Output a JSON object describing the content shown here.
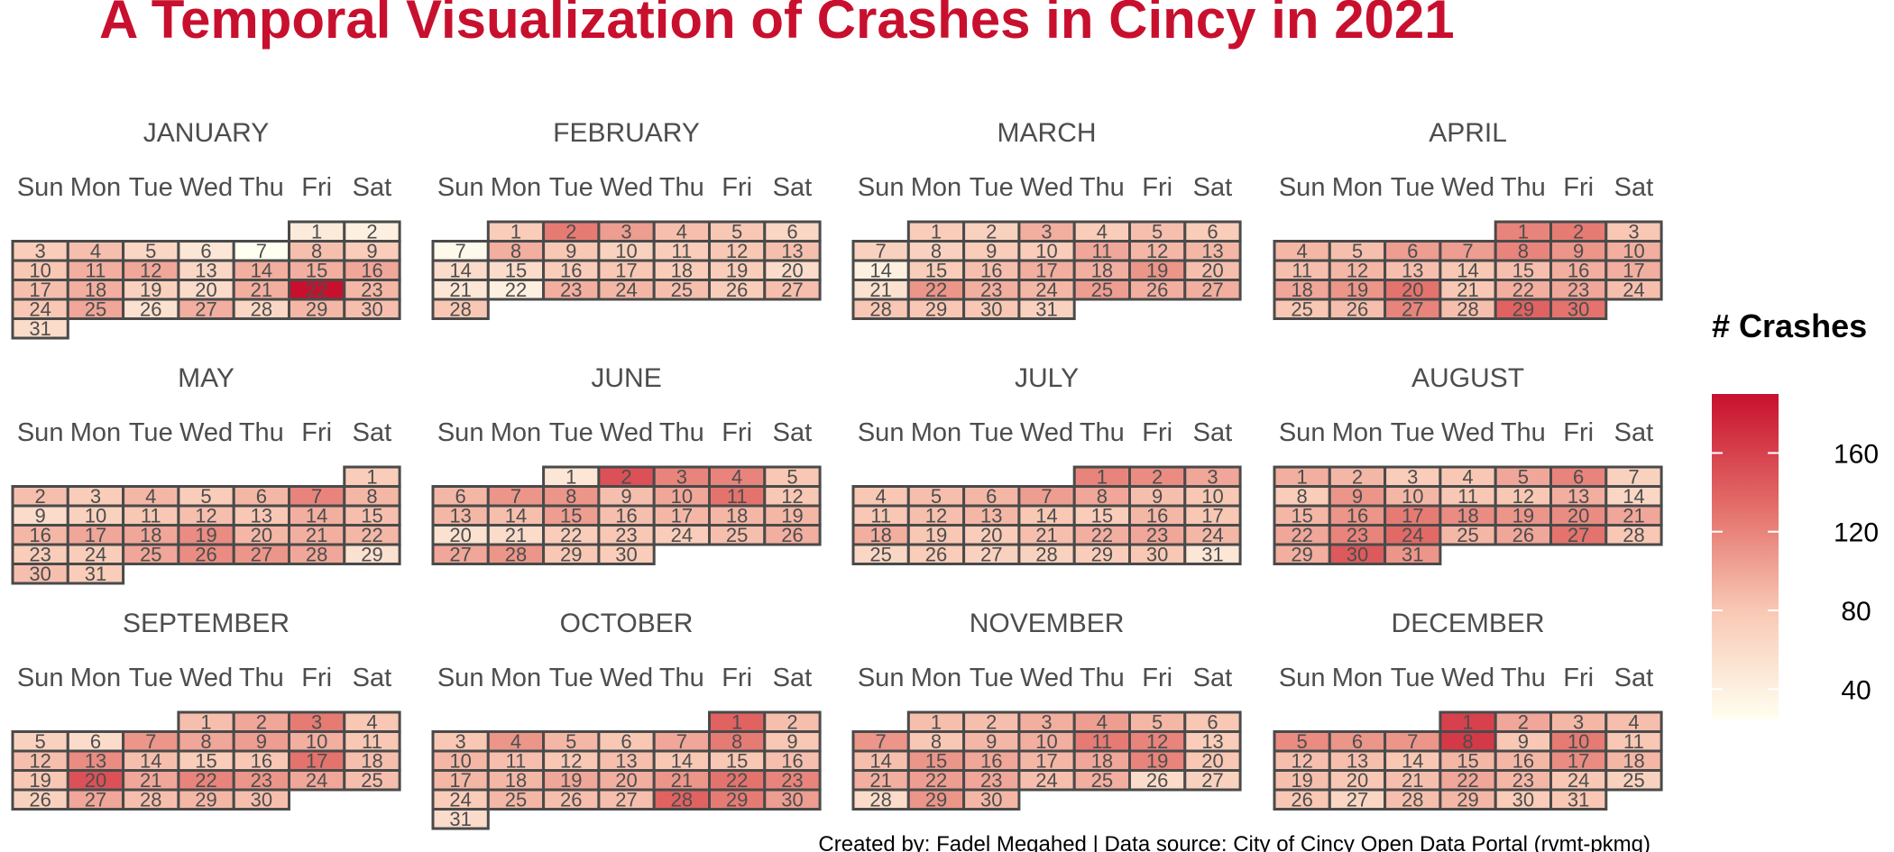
{
  "chart_data": {
    "type": "heatmap",
    "title": "A Temporal Visualization of Crashes in Cincy in 2021",
    "caption": "Created by: Fadel Megahed | Data source: City of Cincy Open Data Portal (rvmt-pkmq)",
    "year": 2021,
    "weekdays": [
      "Sun",
      "Mon",
      "Tue",
      "Wed",
      "Thu",
      "Fri",
      "Sat"
    ],
    "legend": {
      "title": "# Crashes",
      "ticks": [
        40,
        80,
        120,
        160
      ],
      "range": [
        25,
        190
      ],
      "colors": [
        "#fffff0",
        "#f8c8b4",
        "#e26a66",
        "#c8102e"
      ]
    },
    "months": [
      {
        "name": "JANUARY",
        "first_weekday": 5,
        "values": [
          45,
          40,
          75,
          85,
          65,
          50,
          25,
          85,
          75,
          80,
          95,
          100,
          65,
          95,
          95,
          100,
          85,
          95,
          70,
          60,
          95,
          190,
          90,
          80,
          100,
          55,
          95,
          65,
          90,
          85,
          60
        ]
      },
      {
        "name": "FEBRUARY",
        "first_weekday": 1,
        "values": [
          75,
          125,
          105,
          85,
          80,
          65,
          30,
          95,
          80,
          70,
          75,
          80,
          85,
          60,
          60,
          75,
          80,
          75,
          75,
          60,
          50,
          40,
          95,
          90,
          85,
          75,
          85,
          80
        ]
      },
      {
        "name": "MARCH",
        "first_weekday": 1,
        "values": [
          75,
          70,
          95,
          75,
          85,
          75,
          70,
          70,
          75,
          75,
          100,
          90,
          90,
          40,
          75,
          85,
          95,
          95,
          110,
          85,
          55,
          110,
          95,
          90,
          105,
          95,
          95,
          80,
          80,
          80,
          70
        ]
      },
      {
        "name": "APRIL",
        "first_weekday": 4,
        "values": [
          120,
          125,
          80,
          90,
          85,
          105,
          105,
          120,
          110,
          95,
          85,
          90,
          85,
          80,
          85,
          95,
          95,
          100,
          110,
          130,
          80,
          95,
          100,
          85,
          80,
          85,
          120,
          85,
          140,
          130
        ]
      },
      {
        "name": "MAY",
        "first_weekday": 6,
        "values": [
          75,
          85,
          75,
          90,
          75,
          90,
          120,
          90,
          60,
          70,
          80,
          85,
          80,
          95,
          85,
          90,
          100,
          100,
          115,
          90,
          95,
          90,
          75,
          75,
          100,
          115,
          110,
          100,
          55,
          85,
          75
        ]
      },
      {
        "name": "JUNE",
        "first_weekday": 2,
        "values": [
          50,
          150,
          120,
          120,
          80,
          90,
          110,
          110,
          85,
          100,
          130,
          80,
          90,
          85,
          105,
          85,
          90,
          90,
          90,
          55,
          60,
          75,
          80,
          75,
          85,
          95,
          100,
          110,
          80,
          75
        ]
      },
      {
        "name": "JULY",
        "first_weekday": 4,
        "values": [
          120,
          115,
          100,
          80,
          85,
          90,
          105,
          100,
          85,
          80,
          80,
          85,
          90,
          80,
          75,
          90,
          80,
          95,
          80,
          75,
          85,
          95,
          100,
          90,
          65,
          75,
          70,
          70,
          75,
          80,
          50
        ]
      },
      {
        "name": "AUGUST",
        "first_weekday": 0,
        "values": [
          95,
          90,
          75,
          80,
          100,
          120,
          70,
          75,
          110,
          90,
          80,
          80,
          95,
          65,
          90,
          110,
          125,
          115,
          110,
          115,
          100,
          100,
          120,
          135,
          90,
          100,
          130,
          80,
          95,
          145,
          110
        ]
      },
      {
        "name": "SEPTEMBER",
        "first_weekday": 3,
        "values": [
          85,
          100,
          125,
          80,
          70,
          60,
          110,
          100,
          105,
          95,
          80,
          85,
          115,
          85,
          75,
          80,
          130,
          85,
          80,
          150,
          100,
          120,
          110,
          100,
          85,
          70,
          100,
          85,
          90,
          85
        ]
      },
      {
        "name": "OCTOBER",
        "first_weekday": 5,
        "values": [
          140,
          85,
          80,
          110,
          90,
          80,
          100,
          125,
          80,
          90,
          85,
          80,
          85,
          80,
          80,
          85,
          90,
          90,
          100,
          95,
          110,
          130,
          120,
          75,
          90,
          85,
          85,
          140,
          125,
          105,
          60
        ]
      },
      {
        "name": "NOVEMBER",
        "first_weekday": 1,
        "values": [
          85,
          85,
          95,
          105,
          90,
          80,
          110,
          80,
          90,
          95,
          125,
          120,
          75,
          85,
          110,
          100,
          90,
          100,
          120,
          80,
          95,
          105,
          100,
          85,
          95,
          60,
          70,
          60,
          110,
          90
        ]
      },
      {
        "name": "DECEMBER",
        "first_weekday": 3,
        "values": [
          160,
          100,
          90,
          85,
          115,
          110,
          110,
          165,
          80,
          125,
          80,
          85,
          85,
          80,
          90,
          90,
          115,
          90,
          85,
          80,
          85,
          100,
          90,
          80,
          70,
          80,
          65,
          85,
          90,
          75,
          80
        ]
      }
    ]
  }
}
